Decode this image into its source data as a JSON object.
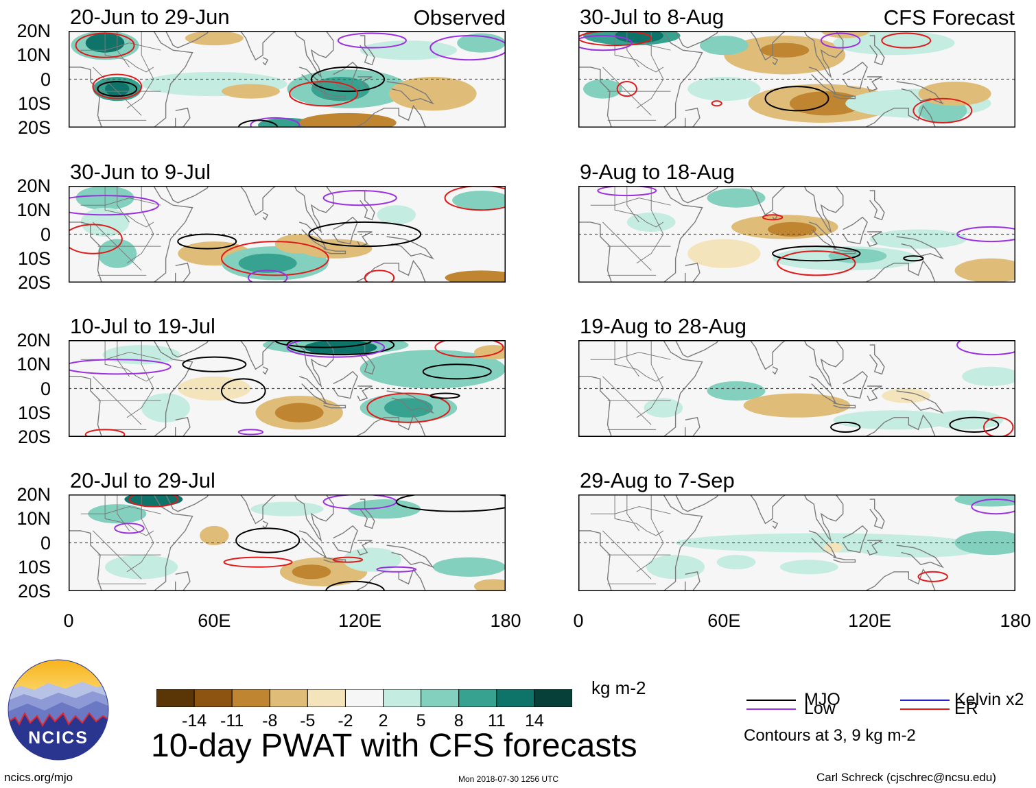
{
  "chart_data": {
    "type": "heatmap",
    "title": "10-day PWAT with CFS forecasts",
    "units": "kg m-2",
    "observed_label": "Observed",
    "forecast_label": "CFS Forecast",
    "y_ticks": [
      "20N",
      "10N",
      "0",
      "10S",
      "20S"
    ],
    "x_ticks": [
      "0",
      "60E",
      "120E",
      "180"
    ],
    "xlim": [
      0,
      180
    ],
    "ylim": [
      -20,
      20
    ],
    "observed_panels": [
      "20-Jun to 29-Jun",
      "30-Jun to 9-Jul",
      "10-Jul to 19-Jul",
      "20-Jul to 29-Jul"
    ],
    "forecast_panels": [
      "30-Jul to 8-Aug",
      "9-Aug to 18-Aug",
      "19-Aug to 28-Aug",
      "29-Aug to 7-Sep"
    ],
    "colorbar": {
      "labels": [
        "-14",
        "-11",
        "-8",
        "-5",
        "-2",
        "2",
        "5",
        "8",
        "11",
        "14"
      ],
      "colors": [
        "#5a3505",
        "#8c5410",
        "#c08530",
        "#dfbd78",
        "#f4e4bc",
        "#f6f6f6",
        "#c4ece0",
        "#82d0bd",
        "#36a28f",
        "#0e7368",
        "#074038"
      ]
    },
    "contour_legend": [
      {
        "label": "MJO",
        "color": "#000000"
      },
      {
        "label": "Kelvin x2",
        "color": "#2020d0"
      },
      {
        "label": "Low",
        "color": "#9b30e0"
      },
      {
        "label": "ER",
        "color": "#e01a1a"
      }
    ],
    "contour_note": "Contours at 3, 9 kg m-2"
  },
  "footer": {
    "logo_text": "NCICS",
    "url": "ncics.org/mjo",
    "timestamp": "Mon 2018-07-30 1256 UTC",
    "author": "Carl Schreck (cjschrec@ncsu.edu)"
  }
}
